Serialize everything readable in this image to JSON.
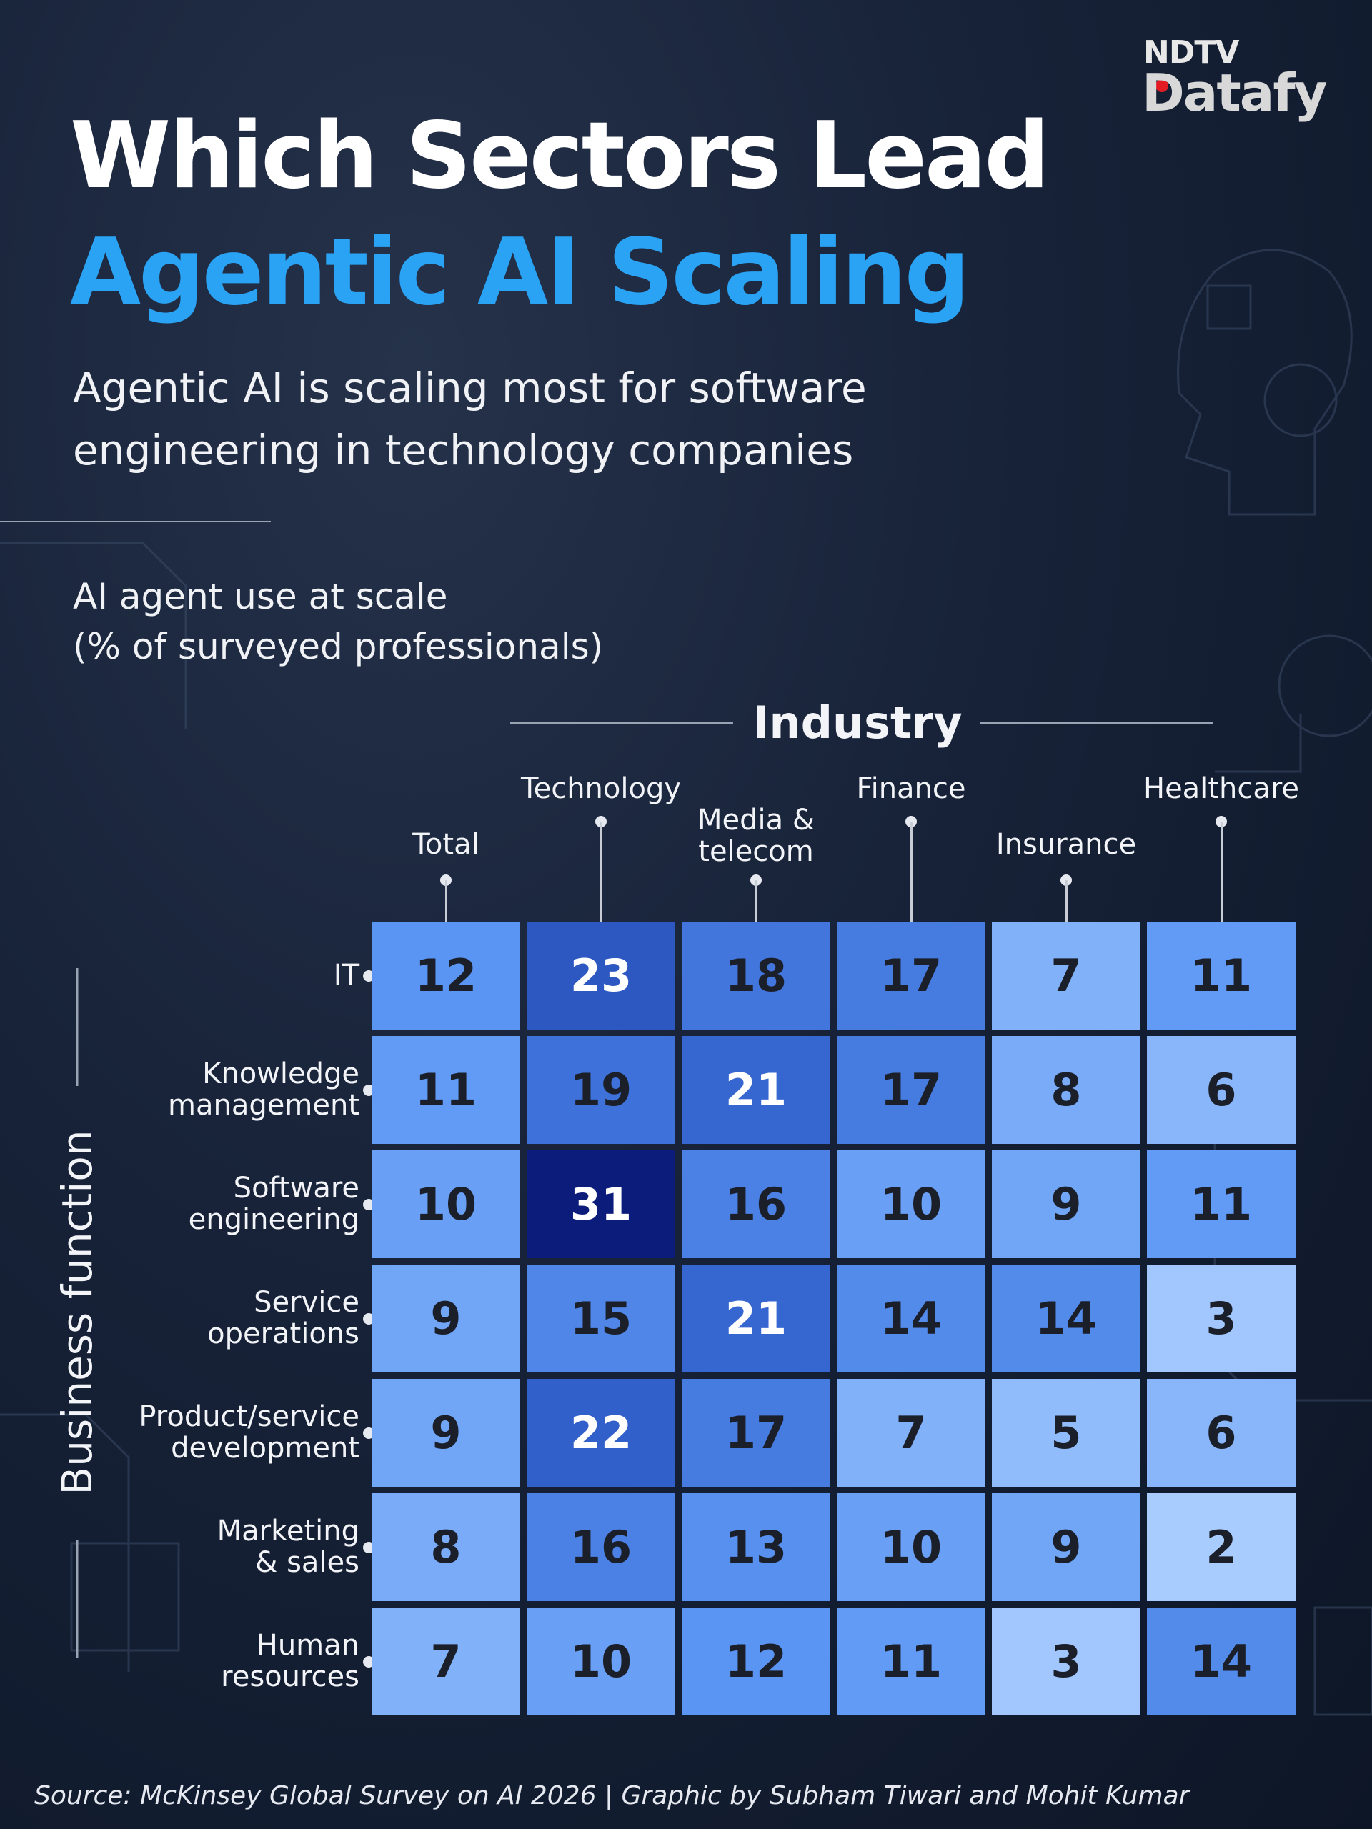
{
  "brand": {
    "top": "NDTV",
    "bottom": "Datafy"
  },
  "chart_data": {
    "type": "heatmap",
    "title_lines": [
      "Which Sectors Lead",
      "Agentic AI Scaling"
    ],
    "subtitle": "Agentic AI is scaling most for software\nengineering in technology companies",
    "measure": "AI agent use at scale\n(% of surveyed professionals)",
    "x_label": "Industry",
    "y_label": "Business function",
    "x_categories": [
      "Total",
      "Technology",
      "Media &\ntelecom",
      "Finance",
      "Insurance",
      "Healthcare"
    ],
    "y_categories": [
      "IT",
      "Knowledge\nmanagement",
      "Software\nengineering",
      "Service\noperations",
      "Product/service\ndevelopment",
      "Marketing\n& sales",
      "Human\nresources"
    ],
    "values": [
      [
        12,
        23,
        18,
        17,
        7,
        11
      ],
      [
        11,
        19,
        21,
        17,
        8,
        6
      ],
      [
        10,
        31,
        16,
        10,
        9,
        11
      ],
      [
        9,
        15,
        21,
        14,
        14,
        3
      ],
      [
        9,
        22,
        17,
        7,
        5,
        6
      ],
      [
        8,
        16,
        13,
        10,
        9,
        2
      ],
      [
        7,
        10,
        12,
        11,
        3,
        14
      ]
    ],
    "color_scale": [
      "#a9ccff",
      "#5c97f4",
      "#3565d0",
      "#0b1c7a"
    ],
    "source": "Source: McKinsey Global Survey on AI 2026 | Graphic by Subham Tiwari and Mohit Kumar"
  }
}
